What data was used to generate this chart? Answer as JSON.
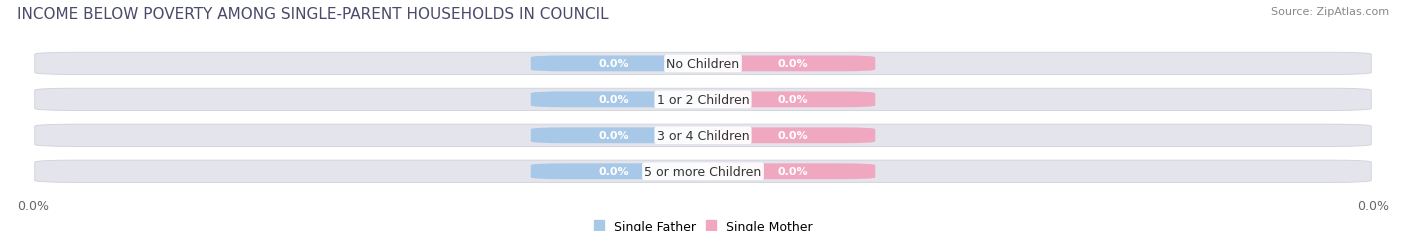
{
  "title": "INCOME BELOW POVERTY AMONG SINGLE-PARENT HOUSEHOLDS IN COUNCIL",
  "source": "Source: ZipAtlas.com",
  "categories": [
    "No Children",
    "1 or 2 Children",
    "3 or 4 Children",
    "5 or more Children"
  ],
  "father_values": [
    0.0,
    0.0,
    0.0,
    0.0
  ],
  "mother_values": [
    0.0,
    0.0,
    0.0,
    0.0
  ],
  "father_color": "#a8c8e8",
  "mother_color": "#f0a8c0",
  "bg_bar_color": "#e4e4ec",
  "bg_bar_edge_color": "#d0d0d8",
  "title_fontsize": 11,
  "source_fontsize": 8,
  "cat_fontsize": 9,
  "val_fontsize": 8,
  "tick_fontsize": 9,
  "x_axis_label_left": "0.0%",
  "x_axis_label_right": "0.0%",
  "legend_father": "Single Father",
  "legend_mother": "Single Mother"
}
